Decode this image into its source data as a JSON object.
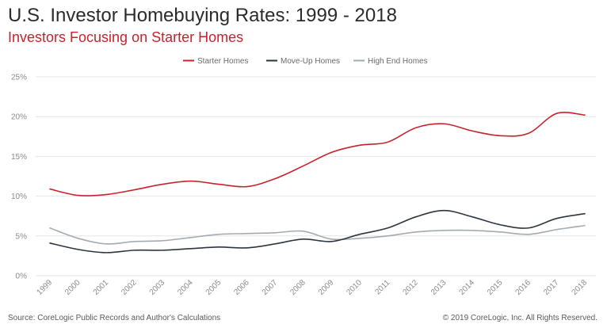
{
  "header": {
    "title": "U.S. Investor Homebuying Rates: 1999 - 2018",
    "subtitle": "Investors Focusing on Starter Homes"
  },
  "footer": {
    "source": "Source: CoreLogic Public Records and Author's Calculations",
    "copyright": "© 2019 CoreLogic, Inc. All Rights Reserved."
  },
  "colors": {
    "title": "#2b2b2b",
    "subtitle": "#c8232c",
    "grid": "#e6e6e6"
  },
  "chart_data": {
    "type": "line",
    "title": "U.S. Investor Homebuying Rates: 1999 - 2018",
    "subtitle": "Investors Focusing on Starter Homes",
    "xlabel": "",
    "ylabel": "",
    "x": [
      "1999",
      "2000",
      "2001",
      "2002",
      "2003",
      "2004",
      "2005",
      "2006",
      "2007",
      "2008",
      "2009",
      "2010",
      "2011",
      "2012",
      "2013",
      "2014",
      "2015",
      "2016",
      "2017",
      "2018"
    ],
    "yticks": [
      "0%",
      "5%",
      "10%",
      "15%",
      "20%",
      "25%"
    ],
    "ylim": [
      0,
      25
    ],
    "grid": true,
    "legend": "top-center",
    "series": [
      {
        "name": "Starter Homes",
        "color": "#c8232c",
        "values": [
          10.9,
          10.1,
          10.2,
          10.8,
          11.5,
          11.9,
          11.5,
          11.2,
          12.2,
          13.8,
          15.5,
          16.4,
          16.8,
          18.6,
          19.1,
          18.2,
          17.6,
          17.9,
          20.4,
          20.2
        ]
      },
      {
        "name": "Move-Up Homes",
        "color": "#2d3640",
        "values": [
          4.1,
          3.3,
          2.9,
          3.2,
          3.2,
          3.4,
          3.6,
          3.5,
          4.0,
          4.6,
          4.3,
          5.2,
          6.0,
          7.4,
          8.2,
          7.4,
          6.4,
          6.0,
          7.2,
          7.8
        ]
      },
      {
        "name": "High End Homes",
        "color": "#a3abb2",
        "values": [
          6.0,
          4.7,
          4.0,
          4.3,
          4.4,
          4.8,
          5.2,
          5.3,
          5.4,
          5.6,
          4.6,
          4.7,
          5.0,
          5.5,
          5.7,
          5.7,
          5.5,
          5.2,
          5.8,
          6.3
        ]
      }
    ]
  }
}
